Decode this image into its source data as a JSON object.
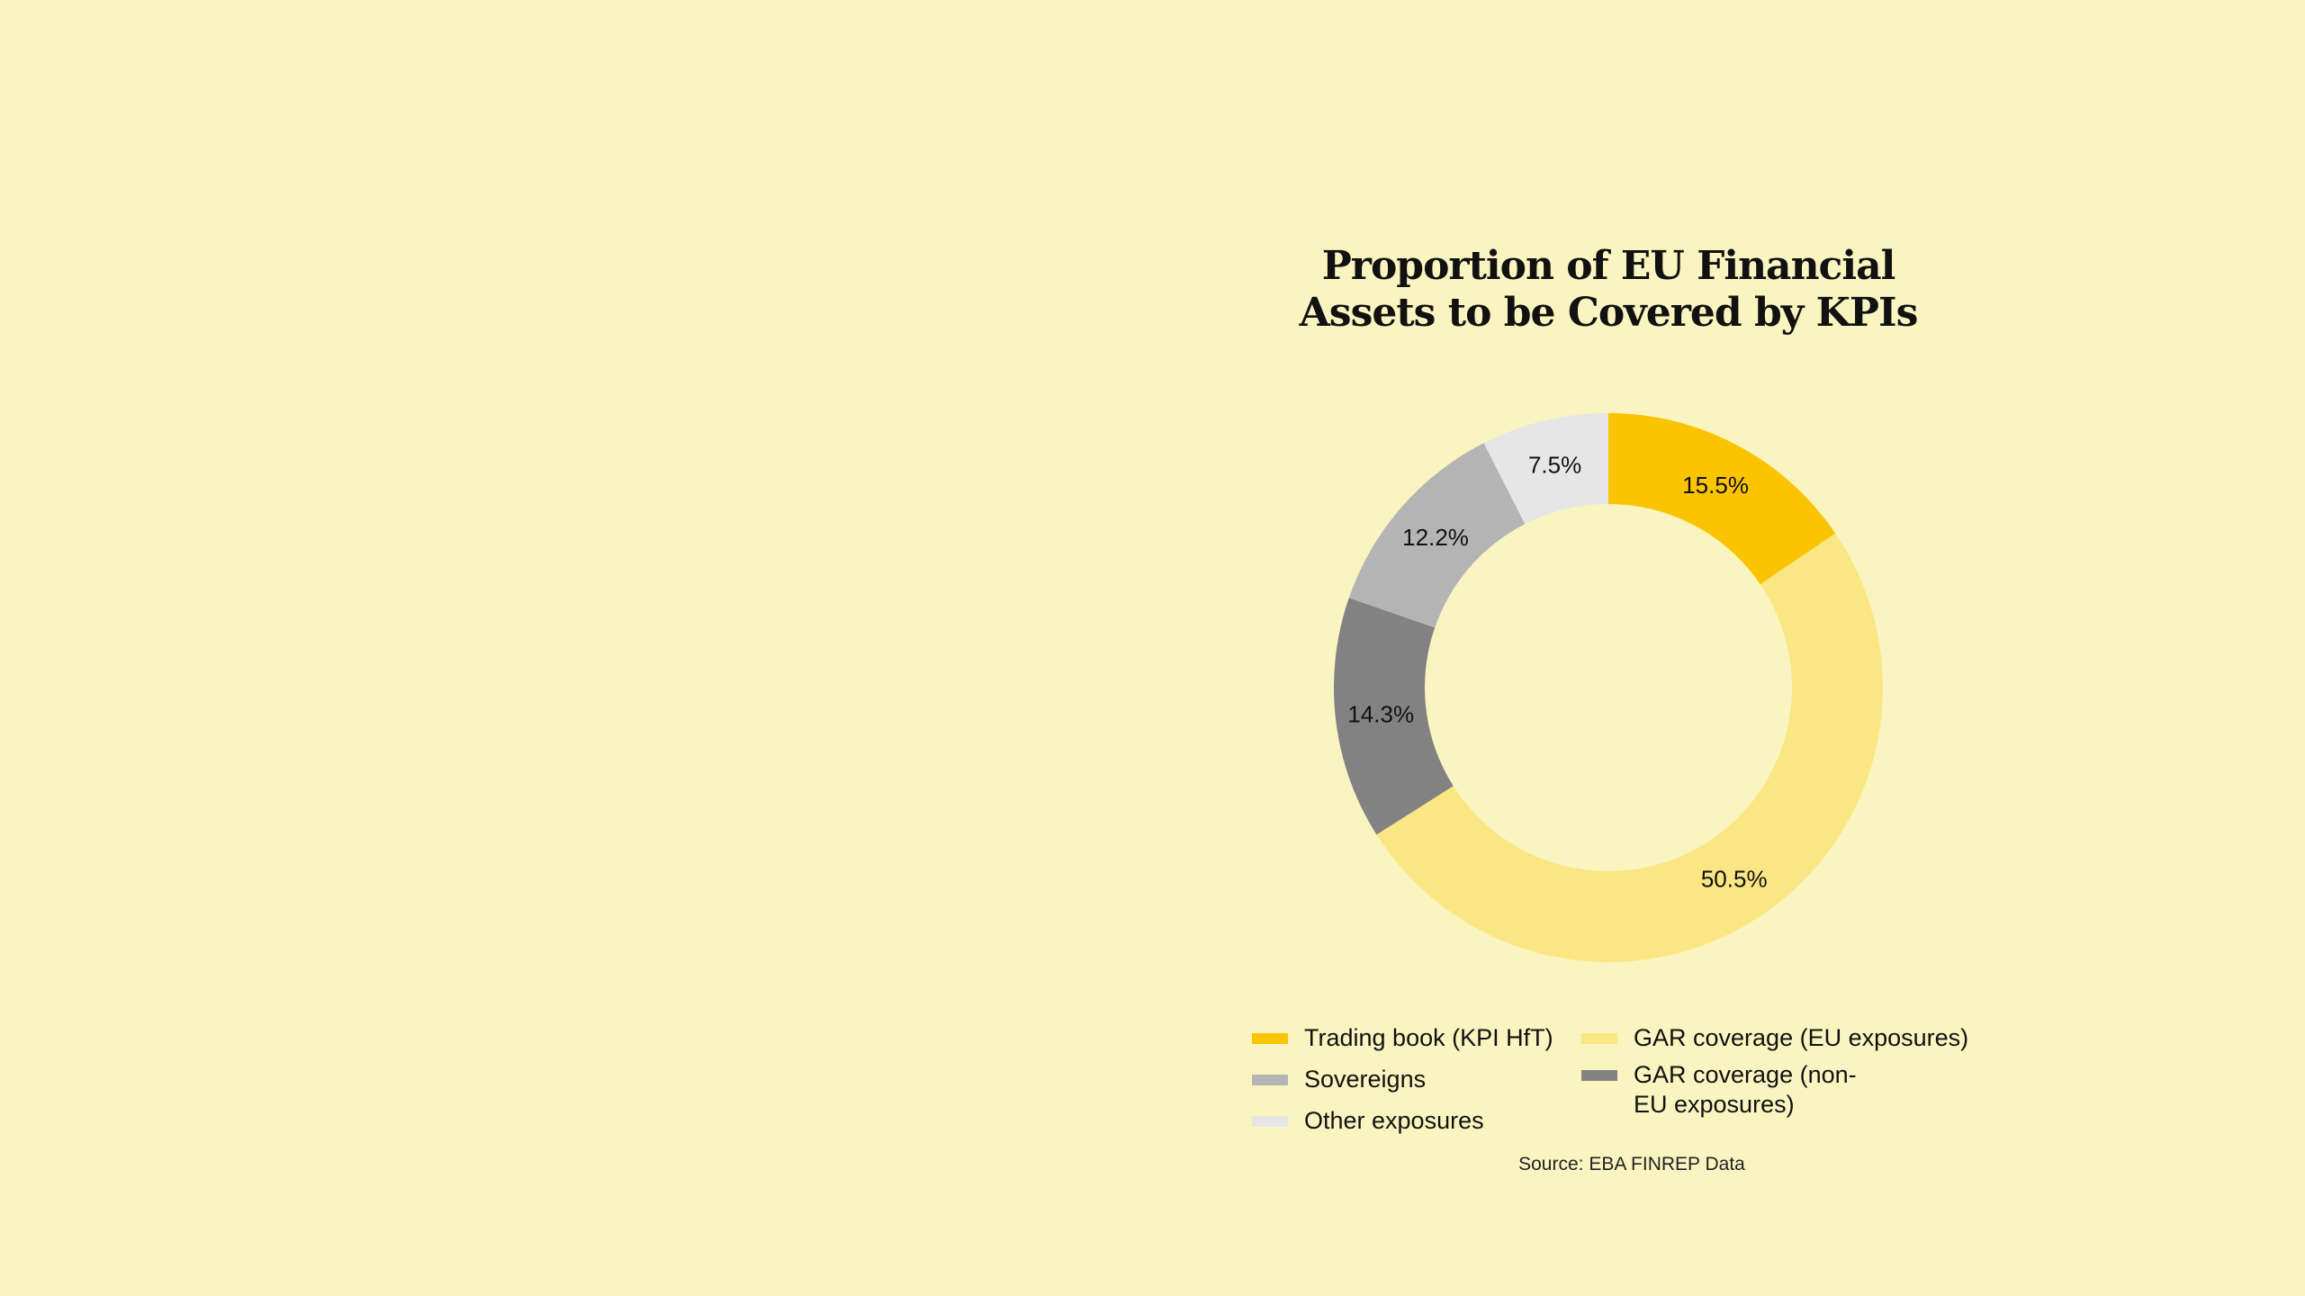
{
  "chart_data": {
    "type": "pie",
    "title": [
      "Proportion of EU Financial",
      "Assets to be Covered by KPIs"
    ],
    "donut": true,
    "categories": [
      "Trading book (KPI HfT)",
      "GAR coverage (EU exposures)",
      "GAR coverage (non-EU exposures)",
      "Sovereigns",
      "Other exposures"
    ],
    "values": [
      15.5,
      50.5,
      14.3,
      12.2,
      7.5
    ],
    "value_labels": [
      "15.5%",
      "50.5%",
      "14.3%",
      "12.2%",
      "7.5%"
    ],
    "colors": [
      "#fbc400",
      "#fae683",
      "#828282",
      "#b4b4b4",
      "#e6e6e6"
    ],
    "legend": {
      "placement": "bottom",
      "items": [
        {
          "label": "Trading book (KPI HfT)",
          "color": "#fbc400"
        },
        {
          "label": "Sovereigns",
          "color": "#b4b4b4"
        },
        {
          "label": "Other exposures",
          "color": "#e6e6e6"
        },
        {
          "label": "GAR coverage (EU exposures)",
          "color": "#fae683"
        },
        {
          "label": "GAR coverage (non-EU exposures)",
          "color": "#828282"
        }
      ]
    },
    "source": "Source: EBA FINREP Data"
  }
}
